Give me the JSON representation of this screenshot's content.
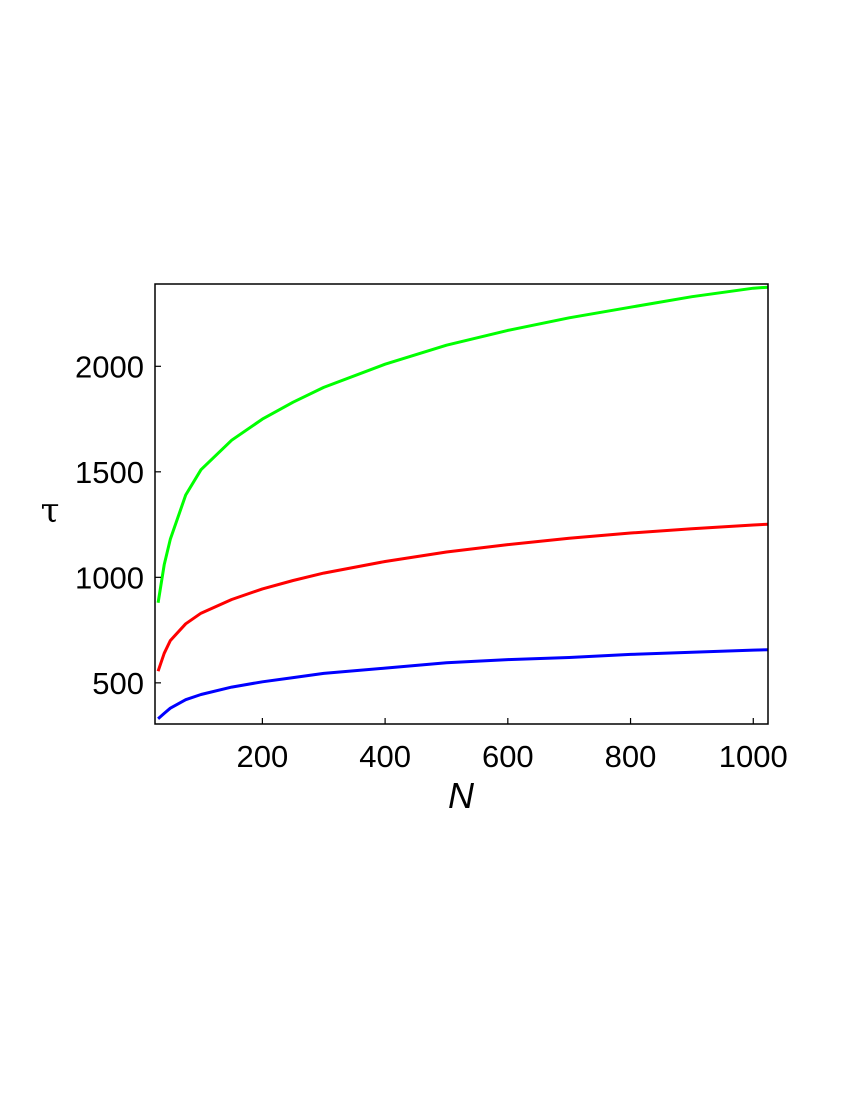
{
  "chart_data": {
    "type": "line",
    "xlabel": "N",
    "ylabel": "τ",
    "xlim": [
      25,
      1024
    ],
    "ylim": [
      305,
      2390
    ],
    "xticks": [
      200,
      400,
      600,
      800,
      1000
    ],
    "yticks": [
      500,
      1000,
      1500,
      2000
    ],
    "grid": false,
    "legend": "none",
    "series": [
      {
        "color": "#00ff00",
        "points": [
          [
            30,
            880
          ],
          [
            40,
            1060
          ],
          [
            50,
            1180
          ],
          [
            75,
            1390
          ],
          [
            100,
            1510
          ],
          [
            150,
            1650
          ],
          [
            200,
            1750
          ],
          [
            250,
            1830
          ],
          [
            300,
            1900
          ],
          [
            400,
            2010
          ],
          [
            500,
            2100
          ],
          [
            600,
            2170
          ],
          [
            700,
            2230
          ],
          [
            800,
            2280
          ],
          [
            900,
            2330
          ],
          [
            1000,
            2370
          ],
          [
            1024,
            2375
          ]
        ]
      },
      {
        "color": "#ff0000",
        "points": [
          [
            30,
            555
          ],
          [
            40,
            640
          ],
          [
            50,
            700
          ],
          [
            75,
            780
          ],
          [
            100,
            830
          ],
          [
            150,
            895
          ],
          [
            200,
            945
          ],
          [
            250,
            985
          ],
          [
            300,
            1020
          ],
          [
            400,
            1075
          ],
          [
            500,
            1120
          ],
          [
            600,
            1155
          ],
          [
            700,
            1185
          ],
          [
            800,
            1210
          ],
          [
            900,
            1230
          ],
          [
            1000,
            1248
          ],
          [
            1024,
            1252
          ]
        ]
      },
      {
        "color": "#0000ff",
        "points": [
          [
            30,
            330
          ],
          [
            40,
            355
          ],
          [
            50,
            380
          ],
          [
            75,
            420
          ],
          [
            100,
            445
          ],
          [
            150,
            480
          ],
          [
            200,
            505
          ],
          [
            250,
            525
          ],
          [
            300,
            545
          ],
          [
            400,
            570
          ],
          [
            500,
            595
          ],
          [
            600,
            610
          ],
          [
            700,
            620
          ],
          [
            800,
            635
          ],
          [
            900,
            645
          ],
          [
            1000,
            655
          ],
          [
            1024,
            657
          ]
        ]
      }
    ]
  }
}
